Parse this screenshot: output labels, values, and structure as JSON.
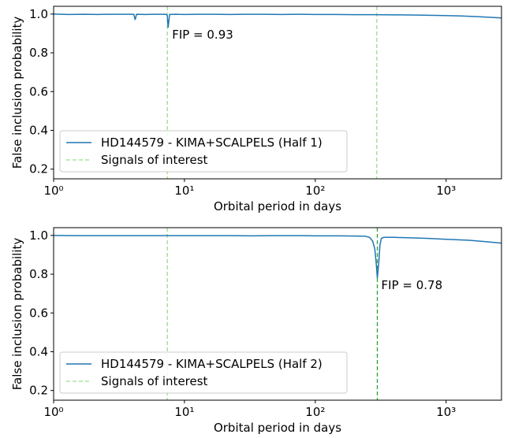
{
  "chart_data": [
    {
      "type": "line",
      "x_label": "Orbital period in days",
      "y_label": "False inclusion probability",
      "xscale": "log",
      "xlim": [
        1,
        2650
      ],
      "ylim": [
        0.15,
        1.04
      ],
      "xticks": [
        {
          "value": 1,
          "label": "10⁰"
        },
        {
          "value": 10,
          "label": "10¹"
        },
        {
          "value": 100,
          "label": "10²"
        },
        {
          "value": 1000,
          "label": "10³"
        }
      ],
      "yticks": [
        0.2,
        0.4,
        0.6,
        0.8,
        {
          "value": 1,
          "label": "1.0"
        }
      ],
      "legend": "lower left",
      "x": [
        1,
        1.3,
        1.7,
        2.2,
        2.8,
        3.5,
        4.1,
        4.2,
        4.3,
        5,
        6,
        7,
        7.3,
        7.4,
        7.5,
        7.7,
        8.5,
        10,
        13,
        17,
        22,
        30,
        40,
        55,
        75,
        100,
        140,
        200,
        280,
        400,
        600,
        900,
        1300,
        1800,
        2650
      ],
      "series": [
        {
          "name": "HD144579 - KIMA+SCALPELS (Half 1)",
          "color": "#1f77b4",
          "values": [
            1.0,
            0.998,
            0.999,
            0.998,
            0.999,
            0.999,
            0.999,
            0.97,
            0.999,
            0.998,
            0.999,
            0.999,
            0.998,
            0.99,
            0.93,
            0.998,
            0.999,
            0.998,
            0.999,
            0.999,
            0.998,
            0.999,
            0.999,
            0.998,
            0.999,
            0.998,
            0.998,
            0.997,
            0.997,
            0.996,
            0.995,
            0.993,
            0.99,
            0.986,
            0.98
          ]
        }
      ],
      "signals": {
        "name": "Signals of interest",
        "x": [
          7.4,
          295
        ],
        "colors": [
          "#98df8a",
          "#98df8a"
        ]
      },
      "annotation": "FIP = 0.93"
    },
    {
      "type": "line",
      "x_label": "Orbital period in days",
      "y_label": "False inclusion probability",
      "xscale": "log",
      "xlim": [
        1,
        2650
      ],
      "ylim": [
        0.15,
        1.04
      ],
      "xticks": [
        {
          "value": 1,
          "label": "10⁰"
        },
        {
          "value": 10,
          "label": "10¹"
        },
        {
          "value": 100,
          "label": "10²"
        },
        {
          "value": 1000,
          "label": "10³"
        }
      ],
      "yticks": [
        0.2,
        0.4,
        0.6,
        0.8,
        {
          "value": 1,
          "label": "1.0"
        }
      ],
      "legend": "lower left",
      "x": [
        1,
        1.5,
        2.2,
        3.3,
        5,
        7.5,
        10,
        15,
        22,
        33,
        50,
        75,
        100,
        150,
        200,
        240,
        260,
        275,
        285,
        292,
        298,
        305,
        312,
        320,
        335,
        360,
        400,
        500,
        700,
        1000,
        1500,
        2000,
        2650
      ],
      "series": [
        {
          "name": "HD144579 - KIMA+SCALPELS (Half 2)",
          "color": "#1f77b4",
          "values": [
            1.0,
            0.999,
            0.999,
            0.999,
            0.999,
            0.999,
            0.999,
            0.999,
            0.999,
            0.998,
            0.999,
            0.999,
            0.998,
            0.998,
            0.997,
            0.996,
            0.99,
            0.97,
            0.93,
            0.86,
            0.78,
            0.85,
            0.95,
            0.985,
            0.99,
            0.99,
            0.99,
            0.988,
            0.985,
            0.98,
            0.975,
            0.968,
            0.96
          ]
        }
      ],
      "signals": {
        "name": "Signals of interest",
        "x": [
          7.4,
          298
        ],
        "colors": [
          "#98df8a",
          "#2ca02c"
        ]
      },
      "annotation": "FIP = 0.78"
    }
  ]
}
